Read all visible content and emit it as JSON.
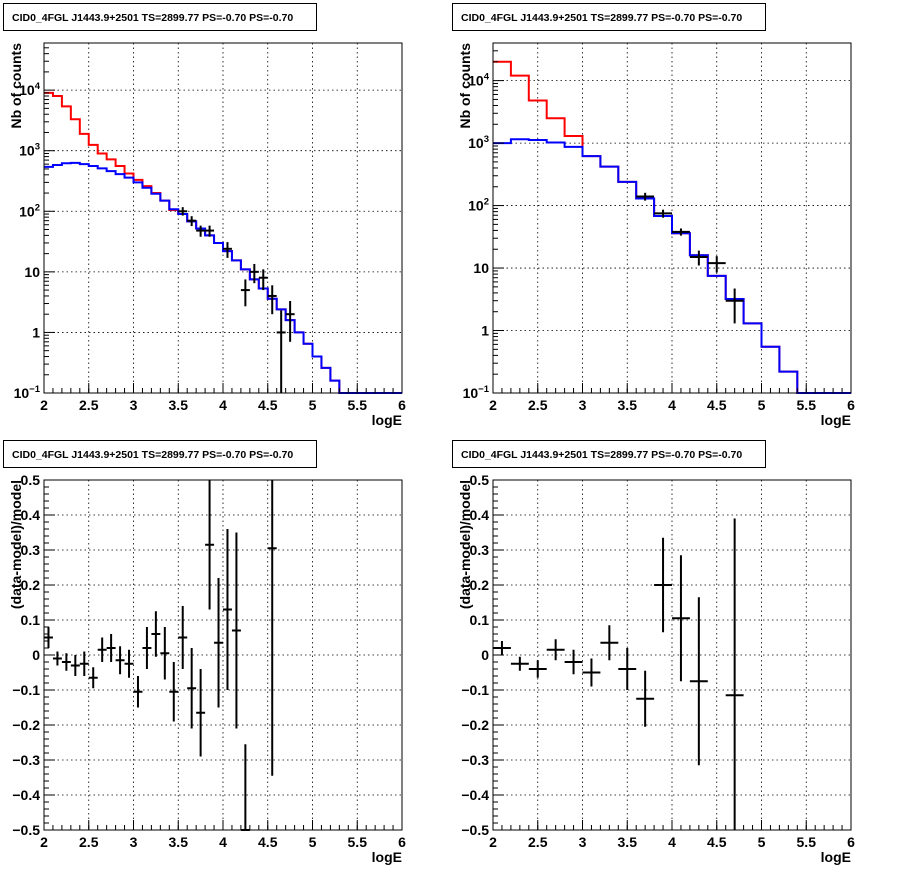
{
  "colors": {
    "model_red": "#ff0000",
    "model_blue": "#0000ff",
    "data": "#000000",
    "grid": "#000000"
  },
  "chart_data": [
    {
      "type": "line",
      "title": "CID0_4FGL J1443.9+2501 TS=2899.77 PS=-0.70 PS=-0.70",
      "xlabel": "logE",
      "ylabel": "Nb of counts",
      "xlim": [
        2,
        6
      ],
      "ylim": [
        0.1,
        60000
      ],
      "yscale": "log",
      "grid": true,
      "x_ticks": [
        "2",
        "2.5",
        "3",
        "3.5",
        "4",
        "4.5",
        "5",
        "5.5",
        "6"
      ],
      "y_ticks": [
        {
          "base": "10",
          "exp": "−1",
          "v": 0.1
        },
        {
          "base": "1",
          "exp": "",
          "v": 1
        },
        {
          "base": "10",
          "exp": "",
          "v": 10
        },
        {
          "base": "10",
          "exp": "2",
          "v": 100
        },
        {
          "base": "10",
          "exp": "3",
          "v": 1000
        },
        {
          "base": "10",
          "exp": "4",
          "v": 10000
        }
      ],
      "bin_edges": [
        2.0,
        2.1,
        2.2,
        2.3,
        2.4,
        2.5,
        2.6,
        2.7,
        2.8,
        2.9,
        3.0,
        3.1,
        3.2,
        3.3,
        3.4,
        3.5,
        3.6,
        3.7,
        3.8,
        3.9,
        4.0,
        4.1,
        4.2,
        4.3,
        4.4,
        4.5,
        4.6,
        4.7,
        4.8,
        4.9,
        5.0,
        5.1,
        5.2,
        5.3,
        5.4,
        5.5,
        5.6,
        5.7,
        5.8,
        5.9,
        6.0
      ],
      "series": [
        {
          "name": "",
          "color": "model_red",
          "values": [
            9000,
            8000,
            5400,
            3300,
            1900,
            1250,
            900,
            720,
            560,
            420,
            330,
            260,
            200,
            150,
            105,
            90,
            68,
            52,
            40,
            30,
            22,
            15.5,
            11,
            7.5,
            5.3,
            3.6,
            2.4,
            1.6,
            1.0,
            0.65,
            0.4,
            0.26,
            0.16,
            0.1,
            0.1,
            0.1,
            0.1,
            0.1,
            0.1,
            0.1
          ]
        },
        {
          "name": "",
          "color": "model_blue",
          "values": [
            540,
            580,
            620,
            630,
            600,
            560,
            510,
            460,
            410,
            360,
            300,
            245,
            195,
            150,
            108,
            90,
            68,
            52,
            40,
            30,
            22,
            15.5,
            11,
            7.5,
            5.3,
            3.6,
            2.4,
            1.6,
            1.0,
            0.65,
            0.4,
            0.26,
            0.16,
            0.1,
            0.1,
            0.1,
            0.1,
            0.1,
            0.1,
            0.1
          ]
        }
      ],
      "points": [
        {
          "x": 3.55,
          "y": 100,
          "ylo": 85,
          "yhi": 117
        },
        {
          "x": 3.65,
          "y": 70,
          "ylo": 57,
          "yhi": 83
        },
        {
          "x": 3.75,
          "y": 48,
          "ylo": 38,
          "yhi": 58
        },
        {
          "x": 3.85,
          "y": 48,
          "ylo": 38,
          "yhi": 58
        },
        {
          "x": 4.05,
          "y": 24,
          "ylo": 17,
          "yhi": 31
        },
        {
          "x": 4.25,
          "y": 5,
          "ylo": 2.7,
          "yhi": 7.5
        },
        {
          "x": 4.35,
          "y": 10,
          "ylo": 6.5,
          "yhi": 13.5
        },
        {
          "x": 4.45,
          "y": 8,
          "ylo": 5,
          "yhi": 11
        },
        {
          "x": 4.55,
          "y": 4,
          "ylo": 2,
          "yhi": 6
        },
        {
          "x": 4.65,
          "y": 1,
          "ylo": 0.1,
          "yhi": 2.3
        },
        {
          "x": 4.75,
          "y": 2,
          "ylo": 0.7,
          "yhi": 3.3
        }
      ]
    },
    {
      "type": "line",
      "title": "CID0_4FGL J1443.9+2501 TS=2899.77 PS=-0.70 PS=-0.70",
      "xlabel": "logE",
      "ylabel": "Nb of counts",
      "xlim": [
        2,
        6
      ],
      "ylim": [
        0.1,
        40000
      ],
      "yscale": "log",
      "grid": true,
      "x_ticks": [
        "2",
        "2.5",
        "3",
        "3.5",
        "4",
        "4.5",
        "5",
        "5.5",
        "6"
      ],
      "y_ticks": [
        {
          "base": "10",
          "exp": "−1",
          "v": 0.1
        },
        {
          "base": "1",
          "exp": "",
          "v": 1
        },
        {
          "base": "10",
          "exp": "",
          "v": 10
        },
        {
          "base": "10",
          "exp": "2",
          "v": 100
        },
        {
          "base": "10",
          "exp": "3",
          "v": 1000
        },
        {
          "base": "10",
          "exp": "4",
          "v": 10000
        }
      ],
      "bin_edges": [
        2.0,
        2.2,
        2.4,
        2.6,
        2.8,
        3.0,
        3.2,
        3.4,
        3.6,
        3.8,
        4.0,
        4.2,
        4.4,
        4.6,
        4.8,
        5.0,
        5.2,
        5.4,
        5.6,
        5.8,
        6.0
      ],
      "series": [
        {
          "name": "",
          "color": "model_red",
          "values": [
            20000,
            12000,
            4800,
            2500,
            1300,
            620,
            420,
            240,
            130,
            68,
            36,
            16,
            7.5,
            3.2,
            1.3,
            0.55,
            0.22,
            0.1,
            0.1,
            0.1
          ]
        },
        {
          "name": "",
          "color": "model_blue",
          "values": [
            1000,
            1150,
            1120,
            1020,
            870,
            620,
            420,
            240,
            130,
            68,
            36,
            16,
            7.5,
            3.2,
            1.3,
            0.55,
            0.22,
            0.1,
            0.1,
            0.1
          ]
        }
      ],
      "points": [
        {
          "x": 3.7,
          "y": 140,
          "ylo": 120,
          "yhi": 160
        },
        {
          "x": 3.9,
          "y": 75,
          "ylo": 64,
          "yhi": 86
        },
        {
          "x": 4.1,
          "y": 38,
          "ylo": 33,
          "yhi": 43
        },
        {
          "x": 4.3,
          "y": 15,
          "ylo": 11,
          "yhi": 19
        },
        {
          "x": 4.5,
          "y": 12,
          "ylo": 8.5,
          "yhi": 15.5
        },
        {
          "x": 4.7,
          "y": 3,
          "ylo": 1.3,
          "yhi": 4.7
        }
      ]
    },
    {
      "type": "scatter",
      "title": "CID0_4FGL J1443.9+2501 TS=2899.77 PS=-0.70 PS=-0.70",
      "xlabel": "logE",
      "ylabel": "(data-model)/model",
      "xlim": [
        2,
        6
      ],
      "ylim": [
        -0.5,
        0.5
      ],
      "grid": true,
      "x_ticks": [
        "2",
        "2.5",
        "3",
        "3.5",
        "4",
        "4.5",
        "5",
        "5.5",
        "6"
      ],
      "y_ticks": [
        "−0.5",
        "−0.4",
        "−0.3",
        "−0.2",
        "−0.1",
        "0",
        "0.1",
        "0.2",
        "0.3",
        "0.4",
        "0.5"
      ],
      "xerr": 0.05,
      "points": [
        {
          "x": 2.05,
          "y": 0.05,
          "ylo": 0.02,
          "yhi": 0.08
        },
        {
          "x": 2.15,
          "y": -0.01,
          "ylo": -0.03,
          "yhi": 0.01
        },
        {
          "x": 2.25,
          "y": -0.02,
          "ylo": -0.045,
          "yhi": 0.005
        },
        {
          "x": 2.35,
          "y": -0.03,
          "ylo": -0.06,
          "yhi": 0.0
        },
        {
          "x": 2.45,
          "y": -0.025,
          "ylo": -0.06,
          "yhi": 0.01
        },
        {
          "x": 2.55,
          "y": -0.065,
          "ylo": -0.095,
          "yhi": -0.035
        },
        {
          "x": 2.65,
          "y": 0.015,
          "ylo": -0.02,
          "yhi": 0.05
        },
        {
          "x": 2.75,
          "y": 0.02,
          "ylo": -0.02,
          "yhi": 0.06
        },
        {
          "x": 2.85,
          "y": -0.015,
          "ylo": -0.055,
          "yhi": 0.025
        },
        {
          "x": 2.95,
          "y": -0.025,
          "ylo": -0.065,
          "yhi": 0.015
        },
        {
          "x": 3.05,
          "y": -0.105,
          "ylo": -0.15,
          "yhi": -0.06
        },
        {
          "x": 3.15,
          "y": 0.02,
          "ylo": -0.04,
          "yhi": 0.08
        },
        {
          "x": 3.25,
          "y": 0.06,
          "ylo": -0.005,
          "yhi": 0.125
        },
        {
          "x": 3.35,
          "y": 0.005,
          "ylo": -0.07,
          "yhi": 0.08
        },
        {
          "x": 3.45,
          "y": -0.105,
          "ylo": -0.19,
          "yhi": -0.02
        },
        {
          "x": 3.55,
          "y": 0.05,
          "ylo": -0.04,
          "yhi": 0.14
        },
        {
          "x": 3.65,
          "y": -0.095,
          "ylo": -0.21,
          "yhi": 0.02
        },
        {
          "x": 3.75,
          "y": -0.165,
          "ylo": -0.29,
          "yhi": -0.04
        },
        {
          "x": 3.85,
          "y": 0.315,
          "ylo": 0.13,
          "yhi": 0.5
        },
        {
          "x": 3.95,
          "y": 0.035,
          "ylo": -0.15,
          "yhi": 0.22
        },
        {
          "x": 4.05,
          "y": 0.13,
          "ylo": -0.1,
          "yhi": 0.36
        },
        {
          "x": 4.15,
          "y": 0.07,
          "ylo": -0.21,
          "yhi": 0.35
        },
        {
          "x": 4.25,
          "y": -0.5,
          "ylo": -0.5,
          "yhi": -0.255
        },
        {
          "x": 4.55,
          "y": 0.305,
          "ylo": -0.345,
          "yhi": 0.5
        }
      ]
    },
    {
      "type": "scatter",
      "title": "CID0_4FGL J1443.9+2501 TS=2899.77 PS=-0.70 PS=-0.70",
      "xlabel": "logE",
      "ylabel": "(data-model)/model",
      "xlim": [
        2,
        6
      ],
      "ylim": [
        -0.5,
        0.5
      ],
      "grid": true,
      "x_ticks": [
        "2",
        "2.5",
        "3",
        "3.5",
        "4",
        "4.5",
        "5",
        "5.5",
        "6"
      ],
      "y_ticks": [
        "−0.5",
        "−0.4",
        "−0.3",
        "−0.2",
        "−0.1",
        "0",
        "0.1",
        "0.2",
        "0.3",
        "0.4",
        "0.5"
      ],
      "xerr": 0.1,
      "points": [
        {
          "x": 2.1,
          "y": 0.02,
          "ylo": 0.0,
          "yhi": 0.04
        },
        {
          "x": 2.3,
          "y": -0.025,
          "ylo": -0.045,
          "yhi": -0.005
        },
        {
          "x": 2.5,
          "y": -0.04,
          "ylo": -0.065,
          "yhi": -0.015
        },
        {
          "x": 2.7,
          "y": 0.015,
          "ylo": -0.015,
          "yhi": 0.045
        },
        {
          "x": 2.9,
          "y": -0.02,
          "ylo": -0.055,
          "yhi": 0.015
        },
        {
          "x": 3.1,
          "y": -0.05,
          "ylo": -0.09,
          "yhi": -0.01
        },
        {
          "x": 3.3,
          "y": 0.035,
          "ylo": -0.015,
          "yhi": 0.085
        },
        {
          "x": 3.5,
          "y": -0.04,
          "ylo": -0.1,
          "yhi": 0.02
        },
        {
          "x": 3.7,
          "y": -0.125,
          "ylo": -0.205,
          "yhi": -0.045
        },
        {
          "x": 3.9,
          "y": 0.2,
          "ylo": 0.065,
          "yhi": 0.335
        },
        {
          "x": 4.1,
          "y": 0.105,
          "ylo": -0.075,
          "yhi": 0.285
        },
        {
          "x": 4.3,
          "y": -0.075,
          "ylo": -0.315,
          "yhi": 0.165
        },
        {
          "x": 4.7,
          "y": -0.115,
          "ylo": -0.5,
          "yhi": 0.39
        }
      ]
    }
  ]
}
